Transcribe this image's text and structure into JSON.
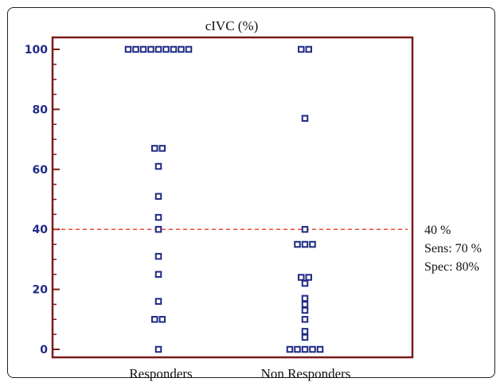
{
  "chart_data": {
    "type": "scatter",
    "title": "cIVC (%)",
    "xlabel": "",
    "ylabel": "",
    "categories": [
      "Responders",
      "Non Responders"
    ],
    "ylim": [
      0,
      100
    ],
    "yticks": [
      "0",
      "20",
      "40",
      "60",
      "80",
      "100"
    ],
    "grid": false,
    "series": [
      {
        "category": "Responders",
        "points": [
          {
            "y": 100,
            "count": 9
          },
          {
            "y": 67,
            "count": 2
          },
          {
            "y": 61,
            "count": 1
          },
          {
            "y": 51,
            "count": 1
          },
          {
            "y": 44,
            "count": 1
          },
          {
            "y": 40,
            "count": 1
          },
          {
            "y": 31,
            "count": 1
          },
          {
            "y": 25,
            "count": 1
          },
          {
            "y": 16,
            "count": 1
          },
          {
            "y": 10,
            "count": 2
          },
          {
            "y": 0,
            "count": 1
          }
        ]
      },
      {
        "category": "Non Responders",
        "points": [
          {
            "y": 100,
            "count": 2
          },
          {
            "y": 77,
            "count": 1
          },
          {
            "y": 40,
            "count": 1
          },
          {
            "y": 35,
            "count": 3
          },
          {
            "y": 24,
            "count": 2
          },
          {
            "y": 22,
            "count": 1
          },
          {
            "y": 17,
            "count": 1
          },
          {
            "y": 15,
            "count": 1
          },
          {
            "y": 13,
            "count": 1
          },
          {
            "y": 10,
            "count": 1
          },
          {
            "y": 6,
            "count": 1
          },
          {
            "y": 4,
            "count": 1
          },
          {
            "y": 0,
            "count": 5
          }
        ]
      }
    ],
    "cutoff": {
      "y": 40,
      "color": "#e8352b",
      "style": "dashed"
    },
    "annotations": [
      "40 %",
      "Sens: 70 %",
      "Spec: 80%"
    ],
    "colors": {
      "marker": "#1f2a86",
      "axis_box": "#7a1a1a",
      "tick_labels": "#1f2a86"
    }
  }
}
